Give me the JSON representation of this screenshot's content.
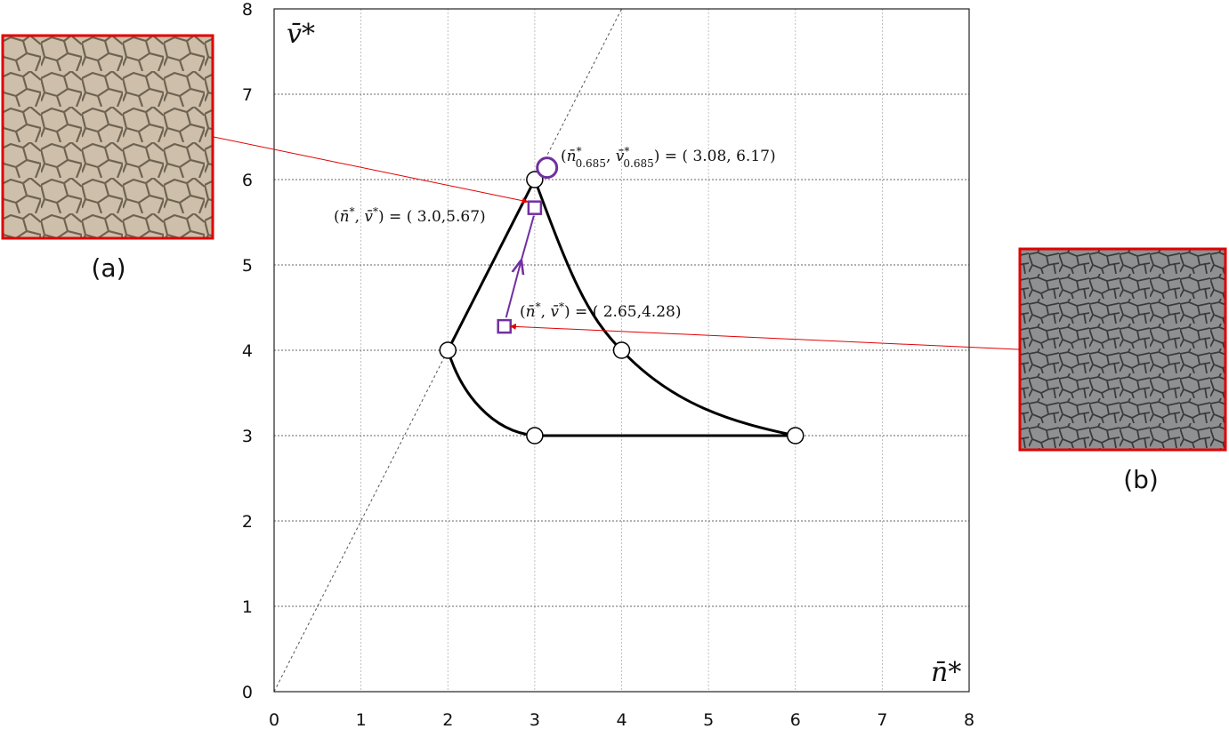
{
  "chart_data": {
    "type": "line",
    "xlabel": "n̄*",
    "ylabel": "v̄*",
    "xlim": [
      0,
      8
    ],
    "ylim": [
      0,
      8
    ],
    "x_ticks": [
      "0",
      "1",
      "2",
      "3",
      "4",
      "5",
      "6",
      "7",
      "8"
    ],
    "y_ticks": [
      "0",
      "1",
      "2",
      "3",
      "4",
      "5",
      "6",
      "7",
      "8"
    ],
    "grid": true,
    "reference_line": {
      "slope": 2,
      "style": "dashed"
    },
    "boundary_vertices": [
      {
        "x": 2,
        "y": 4
      },
      {
        "x": 3,
        "y": 6
      },
      {
        "x": 4,
        "y": 4
      },
      {
        "x": 6,
        "y": 3
      },
      {
        "x": 3,
        "y": 3
      }
    ],
    "boundary_segments": [
      {
        "from": [
          2,
          4
        ],
        "to": [
          3,
          6
        ],
        "shape": "straight"
      },
      {
        "from": [
          3,
          6
        ],
        "to": [
          6,
          3
        ],
        "shape": "convex curve through (4, 4)"
      },
      {
        "from": [
          6,
          3
        ],
        "to": [
          3,
          3
        ],
        "shape": "straight"
      },
      {
        "from": [
          3,
          3
        ],
        "to": [
          2,
          4
        ],
        "shape": "curve"
      }
    ],
    "highlight_point": {
      "x": 3.08,
      "y": 6.17,
      "marker": "circle",
      "label": "(n̄*0.685, v̄*0.685) = ( 3.08, 6.17)"
    },
    "measured_points": [
      {
        "x": 3.0,
        "y": 5.67,
        "marker": "square",
        "label": "(n̄*, v̄*) = ( 3.0,5.67)"
      },
      {
        "x": 2.65,
        "y": 4.28,
        "marker": "square",
        "label": "(n̄*, v̄*) = ( 2.65,4.28)"
      }
    ],
    "transition_arrow": {
      "from": [
        2.65,
        4.28
      ],
      "to": [
        3.0,
        5.67
      ]
    },
    "colors": {
      "boundary": "#000000",
      "highlight": "#7030a0",
      "pointer": "#e00000",
      "frame": "#e00000"
    }
  },
  "images": {
    "a": {
      "caption": "(a)",
      "points_to": [
        2.92,
        5.74
      ]
    },
    "b": {
      "caption": "(b)",
      "points_to": [
        2.72,
        4.28
      ]
    }
  }
}
